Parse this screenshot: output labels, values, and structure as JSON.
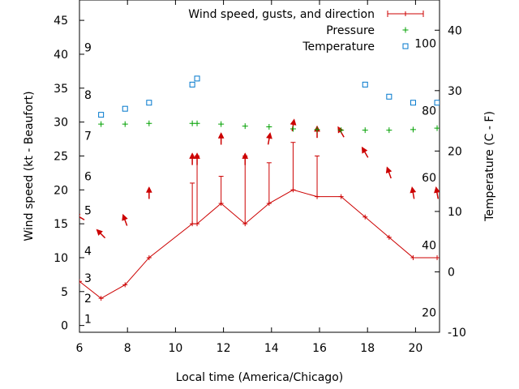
{
  "chart_data": {
    "type": "line",
    "xlabel": "Local time (America/Chicago)",
    "ylabel": "Wind speed (kt - Beaufort)",
    "y2label": "Temperature (C - F)",
    "xlim": [
      6,
      21
    ],
    "ylim": [
      -1,
      48
    ],
    "y2lim": [
      -10,
      45
    ],
    "x_ticks": [
      6,
      8,
      10,
      12,
      14,
      16,
      18,
      20
    ],
    "y_ticks": [
      0,
      5,
      10,
      15,
      20,
      25,
      30,
      35,
      40,
      45
    ],
    "y2_ticks": [
      -10,
      0,
      10,
      20,
      30,
      40
    ],
    "beaufort_labels": [
      {
        "label": "1",
        "kt": 1
      },
      {
        "label": "2",
        "kt": 4
      },
      {
        "label": "3",
        "kt": 7
      },
      {
        "label": "4",
        "kt": 11
      },
      {
        "label": "5",
        "kt": 17
      },
      {
        "label": "6",
        "kt": 22
      },
      {
        "label": "7",
        "kt": 28
      },
      {
        "label": "8",
        "kt": 34
      },
      {
        "label": "9",
        "kt": 41
      }
    ],
    "fahrenheit_labels": [
      {
        "label": "20",
        "c": -6.7
      },
      {
        "label": "40",
        "c": 4.4
      },
      {
        "label": "60",
        "c": 15.6
      },
      {
        "label": "80",
        "c": 26.7
      },
      {
        "label": "100",
        "c": 37.8
      }
    ],
    "legend_placement": "top-right",
    "legend": [
      "Wind speed, gusts, and direction",
      "Pressure",
      "Temperature"
    ],
    "series": [
      {
        "name": "Wind speed, gusts, and direction",
        "color": "#cc0000",
        "points": [
          {
            "x": 6.0,
            "speed": 6.5,
            "gust": null,
            "dir_deg": 300
          },
          {
            "x": 6.9,
            "speed": 4,
            "gust": null,
            "dir_deg": 315
          },
          {
            "x": 7.9,
            "speed": 6,
            "gust": null,
            "dir_deg": 340
          },
          {
            "x": 8.9,
            "speed": 10,
            "gust": null,
            "dir_deg": 0
          },
          {
            "x": 10.7,
            "speed": 15,
            "gust": 21,
            "dir_deg": 0
          },
          {
            "x": 10.9,
            "speed": 15,
            "gust": 25,
            "dir_deg": 0
          },
          {
            "x": 11.9,
            "speed": 18,
            "gust": 22,
            "dir_deg": 0
          },
          {
            "x": 12.9,
            "speed": 15,
            "gust": 25,
            "dir_deg": 0
          },
          {
            "x": 13.9,
            "speed": 18,
            "gust": 24,
            "dir_deg": 10
          },
          {
            "x": 14.9,
            "speed": 20,
            "gust": 27,
            "dir_deg": 10
          },
          {
            "x": 15.9,
            "speed": 19,
            "gust": 25,
            "dir_deg": 0
          },
          {
            "x": 16.9,
            "speed": 19,
            "gust": null,
            "dir_deg": 330
          },
          {
            "x": 17.9,
            "speed": 16,
            "gust": null,
            "dir_deg": 330
          },
          {
            "x": 18.9,
            "speed": 13,
            "gust": null,
            "dir_deg": 340
          },
          {
            "x": 19.9,
            "speed": 10,
            "gust": null,
            "dir_deg": 350
          },
          {
            "x": 20.9,
            "speed": 10,
            "gust": null,
            "dir_deg": 350
          }
        ]
      },
      {
        "name": "Pressure",
        "color": "#00a000",
        "marker": "plus",
        "axis": "y",
        "x": [
          6.9,
          7.9,
          8.9,
          10.7,
          10.9,
          11.9,
          12.9,
          13.9,
          14.9,
          15.9,
          16.9,
          17.9,
          18.9,
          19.9,
          20.9
        ],
        "values": [
          29.7,
          29.7,
          29.8,
          29.8,
          29.8,
          29.7,
          29.4,
          29.3,
          29.0,
          28.9,
          28.8,
          28.8,
          28.8,
          28.9,
          29.1
        ]
      },
      {
        "name": "Temperature",
        "color": "#0077cc",
        "marker": "square",
        "axis": "y2",
        "x": [
          6.9,
          7.9,
          8.9,
          10.7,
          10.9,
          17.9,
          18.9,
          19.9,
          20.9
        ],
        "values": [
          26,
          27,
          28,
          31,
          32,
          31,
          29,
          28,
          28
        ]
      }
    ]
  }
}
